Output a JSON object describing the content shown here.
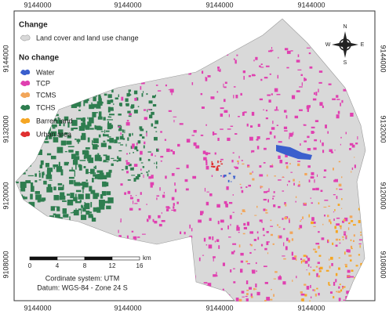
{
  "frame": {
    "top_labels": [
      "9144000",
      "9144000",
      "9144000",
      "9144000"
    ],
    "bottom_labels": [
      "9144000",
      "9144000",
      "9144000",
      "9144000"
    ],
    "left_labels": [
      "9144000",
      "9132000",
      "9120000",
      "9108000"
    ],
    "right_labels": [
      "9144000",
      "9132000",
      "9120000",
      "9108000"
    ]
  },
  "legend": {
    "change_title": "Change",
    "change_item": {
      "label": "Land cover and land use change",
      "color": "#d9d9d9"
    },
    "no_change_title": "No change",
    "items": [
      {
        "label": "Water",
        "color": "#3a5fcd"
      },
      {
        "label": "TCP",
        "color": "#e040b0"
      },
      {
        "label": "TCMS",
        "color": "#f2a65a"
      },
      {
        "label": "TCHS",
        "color": "#2e7d4f"
      },
      {
        "label": "Barren land",
        "color": "#f5a623"
      },
      {
        "label": "Urban area",
        "color": "#e03030"
      }
    ]
  },
  "compass": {
    "north": "N",
    "south": "S",
    "west": "W",
    "east": "E"
  },
  "scale_bar": {
    "ticks": [
      0,
      4,
      8,
      12,
      16
    ],
    "unit": "km"
  },
  "notes": [
    "Cordinate system: UTM",
    "Datum: WGS-84 - Zone 24 S"
  ]
}
